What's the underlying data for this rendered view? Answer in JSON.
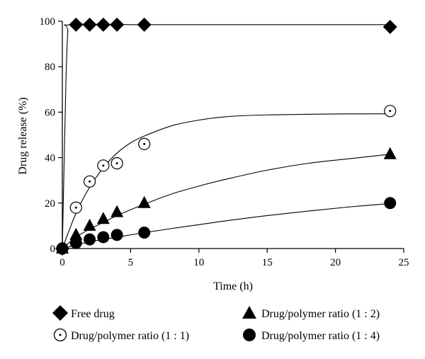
{
  "chart_data": {
    "type": "scatter",
    "xlabel": "Time (h)",
    "ylabel": "Drug release (%)",
    "xlim": [
      0,
      25
    ],
    "ylim": [
      0,
      100
    ],
    "xticks": [
      "0",
      "5",
      "10",
      "15",
      "20",
      "25"
    ],
    "yticks": [
      "0",
      "20",
      "40",
      "60",
      "80",
      "100"
    ],
    "grid": false,
    "legend_position": "bottom",
    "series": [
      {
        "name": "Free drug",
        "marker": "diamond",
        "x": [
          0,
          1,
          2,
          3,
          4,
          6,
          24
        ],
        "y": [
          0,
          98.5,
          98.5,
          98.5,
          98.5,
          98.5,
          97.5
        ],
        "fit": [
          [
            0,
            0
          ],
          [
            0.25,
            70
          ],
          [
            0.4,
            95
          ],
          [
            0.6,
            98.5
          ],
          [
            6,
            98.5
          ],
          [
            24,
            98.5
          ]
        ]
      },
      {
        "name": "Drug/polymer ratio (1 : 1)",
        "marker": "dotted-circle",
        "x": [
          0,
          1,
          2,
          3,
          4,
          6,
          24
        ],
        "y": [
          0,
          18,
          29.5,
          36.5,
          37.5,
          46,
          60.5
        ],
        "fit": [
          [
            0,
            0
          ],
          [
            1,
            15.5
          ],
          [
            2,
            27
          ],
          [
            3,
            35.5
          ],
          [
            4,
            42
          ],
          [
            5,
            46.5
          ],
          [
            6,
            49.5
          ],
          [
            8,
            54
          ],
          [
            10,
            56.5
          ],
          [
            12,
            58
          ],
          [
            15,
            58.8
          ],
          [
            20,
            59.2
          ],
          [
            24,
            59.3
          ]
        ]
      },
      {
        "name": "Drug/polymer ratio (1 : 2)",
        "marker": "triangle",
        "x": [
          0,
          1,
          2,
          3,
          4,
          6,
          24
        ],
        "y": [
          0,
          6,
          10,
          13,
          16,
          20,
          41.5
        ],
        "fit": [
          [
            0,
            0
          ],
          [
            1,
            5
          ],
          [
            2,
            8.5
          ],
          [
            3,
            11.5
          ],
          [
            4,
            14.5
          ],
          [
            6,
            19.5
          ],
          [
            8,
            24
          ],
          [
            10,
            27.5
          ],
          [
            12,
            30.5
          ],
          [
            15,
            34.5
          ],
          [
            18,
            37.5
          ],
          [
            21,
            39.5
          ],
          [
            24,
            41.5
          ]
        ]
      },
      {
        "name": "Drug/polymer ratio (1 : 4)",
        "marker": "filled-circle",
        "x": [
          0,
          1,
          2,
          3,
          4,
          6,
          24
        ],
        "y": [
          0,
          2.5,
          4,
          5,
          6,
          7,
          20
        ],
        "fit": [
          [
            0,
            0
          ],
          [
            1,
            1.5
          ],
          [
            2,
            3
          ],
          [
            3,
            4
          ],
          [
            4,
            5
          ],
          [
            6,
            7
          ],
          [
            8,
            8.8
          ],
          [
            10,
            10.5
          ],
          [
            12,
            12.2
          ],
          [
            15,
            14.5
          ],
          [
            18,
            16.5
          ],
          [
            21,
            18.3
          ],
          [
            24,
            19.8
          ]
        ]
      }
    ]
  }
}
